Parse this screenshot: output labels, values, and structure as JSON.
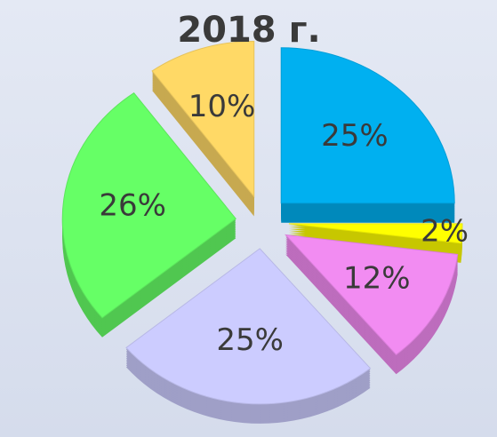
{
  "chart_data": {
    "type": "pie",
    "title": "2018 г.",
    "values": [
      25,
      2,
      12,
      25,
      26,
      10
    ],
    "value_labels": [
      "25%",
      "2%",
      "12%",
      "25%",
      "26%",
      "10%"
    ],
    "colors": [
      "#00b0f0",
      "#ffff00",
      "#f28cf2",
      "#ccccff",
      "#66ff66",
      "#ffd966"
    ]
  }
}
